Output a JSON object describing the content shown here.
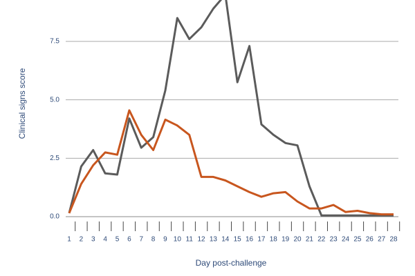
{
  "chart_data": {
    "type": "line",
    "y_label": "Clinical signs score",
    "x_label": "Day post-challenge",
    "x": [
      1,
      2,
      3,
      4,
      5,
      6,
      7,
      8,
      9,
      10,
      11,
      12,
      13,
      14,
      15,
      16,
      17,
      18,
      19,
      20,
      21,
      22,
      23,
      24,
      25,
      26,
      27,
      28
    ],
    "xlim": [
      1,
      28
    ],
    "ylim": [
      0,
      9.27
    ],
    "yticks": [
      {
        "value": 0,
        "label": "0.0"
      },
      2.5,
      {
        "value": 5,
        "label": "5.0"
      },
      7.5
    ],
    "grid": true,
    "series": [
      {
        "color": "#5b5b5b",
        "values": [
          0.15,
          2.15,
          2.85,
          1.85,
          1.8,
          4.2,
          2.95,
          3.4,
          5.4,
          8.5,
          7.6,
          8.1,
          8.9,
          9.5,
          5.75,
          7.3,
          3.95,
          3.5,
          3.15,
          3.05,
          1.3,
          0.05,
          0.05,
          0.05,
          0.05,
          0.05,
          0.05,
          0.05
        ]
      },
      {
        "color": "#c8561e",
        "values": [
          0.15,
          1.4,
          2.2,
          2.75,
          2.65,
          4.55,
          3.5,
          2.85,
          4.15,
          3.9,
          3.5,
          1.7,
          1.7,
          1.55,
          1.3,
          1.05,
          0.85,
          1.0,
          1.05,
          0.65,
          0.35,
          0.35,
          0.5,
          0.2,
          0.25,
          0.15,
          0.1,
          0.1
        ]
      }
    ]
  }
}
